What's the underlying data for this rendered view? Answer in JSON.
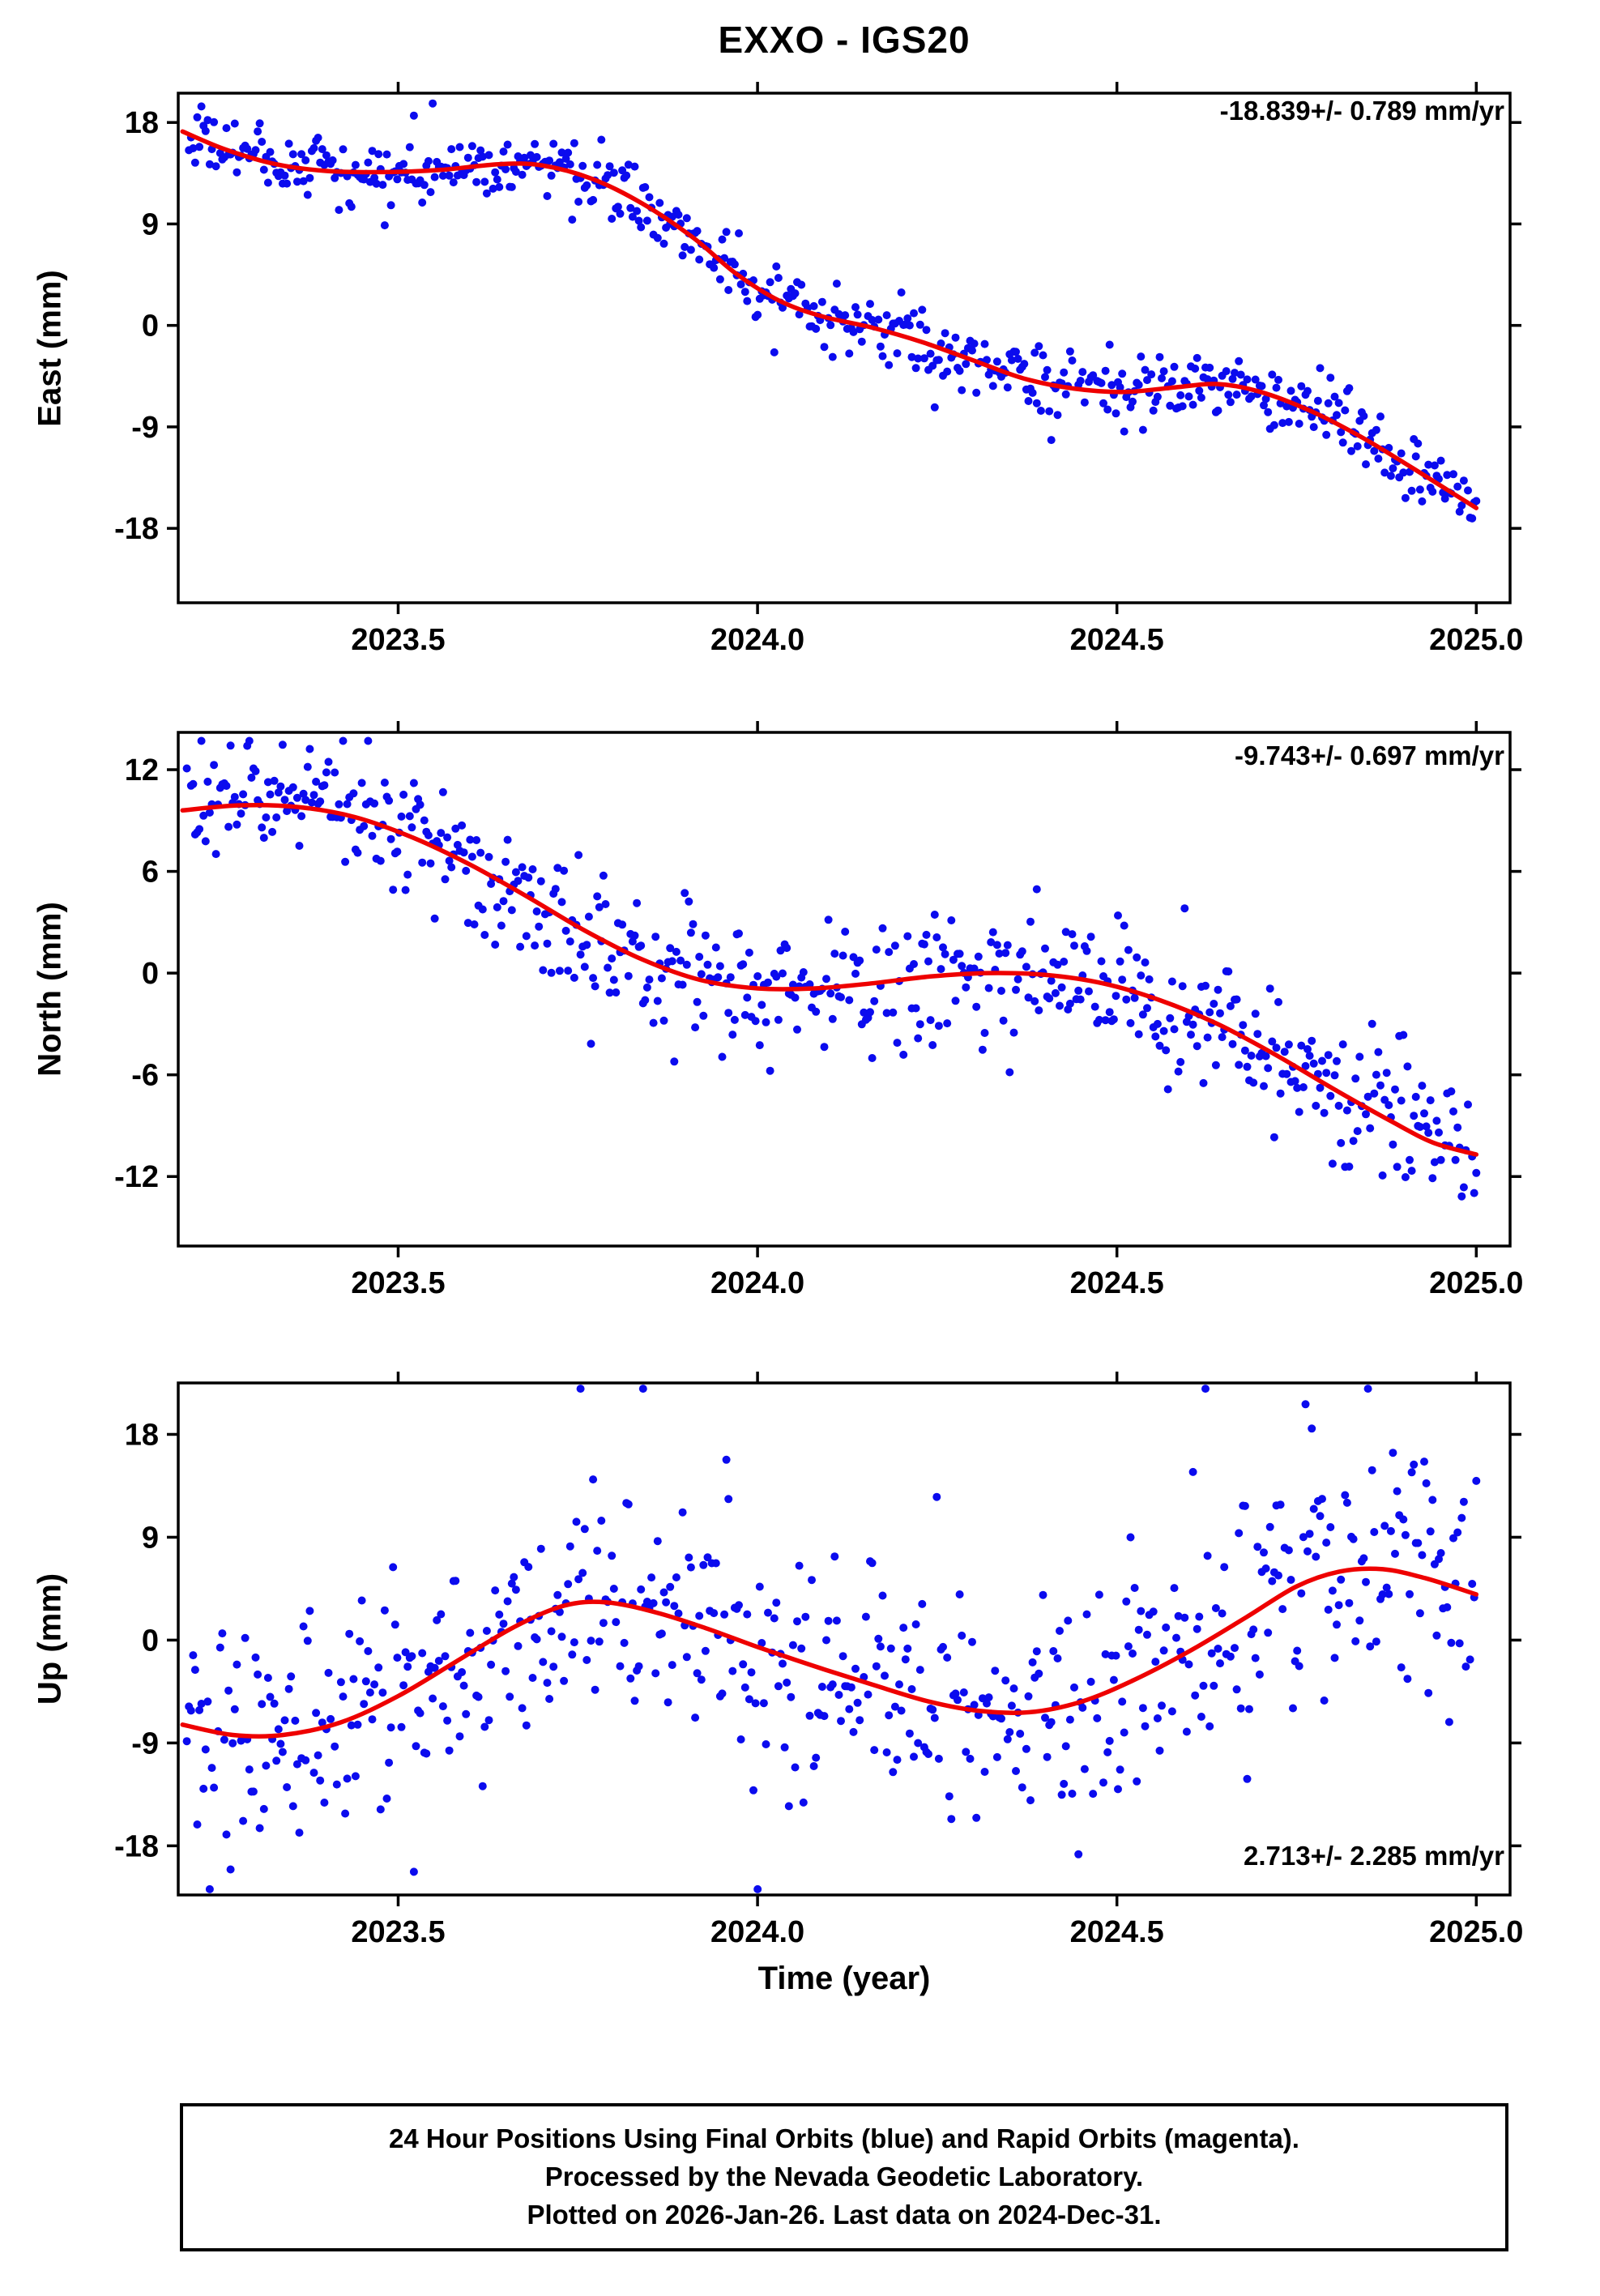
{
  "title": "EXXO - IGS20",
  "x_axis_label": "Time (year)",
  "colors": {
    "points_blue": "#0b0bee",
    "trend_red": "#ee0000",
    "frame_black": "#000000"
  },
  "footer": {
    "line1": "24 Hour Positions Using Final Orbits (blue) and Rapid Orbits (magenta).",
    "line2": "Processed by the Nevada Geodetic Laboratory.",
    "line3": "Plotted on 2026-Jan-26. Last data on 2024-Dec-31."
  },
  "chart_data": [
    {
      "type": "scatter",
      "id": "east",
      "ylabel": "East (mm)",
      "rate_annotation": "-18.839+/- 0.789 mm/yr",
      "rate_annotation_position": "top-right",
      "xlim": [
        2023.194,
        2025.047
      ],
      "ylim": [
        -24.6,
        20.6
      ],
      "xticks": [
        2023.5,
        2024.0,
        2024.5,
        2025.0
      ],
      "xtick_labels": [
        "2023.5",
        "2024.0",
        "2024.5",
        "2025.0"
      ],
      "yticks": [
        -18,
        -9,
        0,
        9,
        18
      ],
      "trend_line": [
        [
          2023.2,
          17.2
        ],
        [
          2023.26,
          15.6
        ],
        [
          2023.33,
          14.3
        ],
        [
          2023.4,
          13.7
        ],
        [
          2023.48,
          13.6
        ],
        [
          2023.56,
          13.8
        ],
        [
          2023.64,
          14.3
        ],
        [
          2023.7,
          14.2
        ],
        [
          2023.77,
          13.0
        ],
        [
          2023.84,
          10.8
        ],
        [
          2023.91,
          7.8
        ],
        [
          2023.97,
          4.6
        ],
        [
          2024.03,
          2.2
        ],
        [
          2024.09,
          0.8
        ],
        [
          2024.16,
          -0.2
        ],
        [
          2024.23,
          -1.5
        ],
        [
          2024.3,
          -3.1
        ],
        [
          2024.37,
          -4.7
        ],
        [
          2024.44,
          -5.6
        ],
        [
          2024.51,
          -5.9
        ],
        [
          2024.58,
          -5.5
        ],
        [
          2024.64,
          -5.2
        ],
        [
          2024.7,
          -5.9
        ],
        [
          2024.77,
          -7.6
        ],
        [
          2024.84,
          -9.9
        ],
        [
          2024.91,
          -12.6
        ],
        [
          2024.96,
          -14.6
        ],
        [
          2025.0,
          -16.2
        ]
      ],
      "scatter_model": {
        "n": 620,
        "start": 2023.206,
        "end": 2025.0,
        "sd": 1.5,
        "seed": 7,
        "outlier_frac": 0.02,
        "outlier_mult": 2.8,
        "gap_frac": 0.05
      }
    },
    {
      "type": "scatter",
      "id": "north",
      "ylabel": "North (mm)",
      "rate_annotation": "-9.743+/- 0.697 mm/yr",
      "rate_annotation_position": "top-right",
      "xlim": [
        2023.194,
        2025.047
      ],
      "ylim": [
        -16.1,
        14.2
      ],
      "xticks": [
        2023.5,
        2024.0,
        2024.5,
        2025.0
      ],
      "xtick_labels": [
        "2023.5",
        "2024.0",
        "2024.5",
        "2025.0"
      ],
      "yticks": [
        -12,
        -6,
        0,
        6,
        12
      ],
      "trend_line": [
        [
          2023.2,
          9.6
        ],
        [
          2023.28,
          9.9
        ],
        [
          2023.36,
          9.8
        ],
        [
          2023.44,
          9.2
        ],
        [
          2023.52,
          8.0
        ],
        [
          2023.6,
          6.4
        ],
        [
          2023.68,
          4.5
        ],
        [
          2023.76,
          2.5
        ],
        [
          2023.84,
          0.8
        ],
        [
          2023.92,
          -0.4
        ],
        [
          2024.0,
          -0.9
        ],
        [
          2024.08,
          -0.9
        ],
        [
          2024.16,
          -0.6
        ],
        [
          2024.24,
          -0.2
        ],
        [
          2024.32,
          0.0
        ],
        [
          2024.4,
          -0.1
        ],
        [
          2024.48,
          -0.6
        ],
        [
          2024.56,
          -1.6
        ],
        [
          2024.64,
          -3.0
        ],
        [
          2024.72,
          -4.8
        ],
        [
          2024.8,
          -6.8
        ],
        [
          2024.88,
          -8.7
        ],
        [
          2024.94,
          -10.0
        ],
        [
          2025.0,
          -10.7
        ]
      ],
      "scatter_model": {
        "n": 620,
        "start": 2023.206,
        "end": 2025.0,
        "sd": 1.9,
        "seed": 13,
        "outlier_frac": 0.02,
        "outlier_mult": 2.2,
        "gap_frac": 0.05
      }
    },
    {
      "type": "scatter",
      "id": "up",
      "ylabel": "Up (mm)",
      "rate_annotation": "2.713+/- 2.285 mm/yr",
      "rate_annotation_position": "bottom-right",
      "xlim": [
        2023.194,
        2025.047
      ],
      "ylim": [
        -22.3,
        22.5
      ],
      "xticks": [
        2023.5,
        2024.0,
        2024.5,
        2025.0
      ],
      "xtick_labels": [
        "2023.5",
        "2024.0",
        "2024.5",
        "2025.0"
      ],
      "yticks": [
        -18,
        -9,
        0,
        9,
        18
      ],
      "trend_line": [
        [
          2023.2,
          -7.4
        ],
        [
          2023.27,
          -8.3
        ],
        [
          2023.34,
          -8.3
        ],
        [
          2023.42,
          -7.2
        ],
        [
          2023.5,
          -4.9
        ],
        [
          2023.58,
          -1.9
        ],
        [
          2023.66,
          1.1
        ],
        [
          2023.73,
          3.0
        ],
        [
          2023.79,
          3.3
        ],
        [
          2023.86,
          2.4
        ],
        [
          2023.93,
          1.0
        ],
        [
          2024.0,
          -0.6
        ],
        [
          2024.08,
          -2.3
        ],
        [
          2024.16,
          -3.9
        ],
        [
          2024.24,
          -5.4
        ],
        [
          2024.31,
          -6.2
        ],
        [
          2024.38,
          -6.3
        ],
        [
          2024.45,
          -5.4
        ],
        [
          2024.52,
          -3.6
        ],
        [
          2024.6,
          -1.0
        ],
        [
          2024.68,
          2.0
        ],
        [
          2024.75,
          4.7
        ],
        [
          2024.81,
          6.0
        ],
        [
          2024.87,
          6.2
        ],
        [
          2024.93,
          5.4
        ],
        [
          2025.0,
          4.0
        ]
      ],
      "scatter_model": {
        "n": 620,
        "start": 2023.206,
        "end": 2025.0,
        "sd": 5.2,
        "seed": 21,
        "outlier_frac": 0.06,
        "outlier_mult": 2.0,
        "gap_frac": 0.06
      }
    }
  ]
}
